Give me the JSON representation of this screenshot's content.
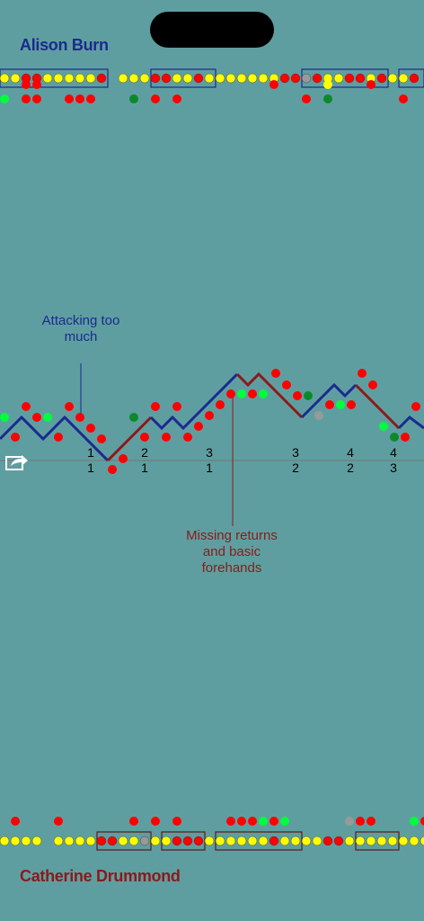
{
  "players": {
    "top": "Alison Burn",
    "bottom": "Catherine Drummond"
  },
  "annotations": {
    "top": "Attacking too much",
    "bottom": "Missing returns and basic forehands"
  },
  "score_markers": [
    {
      "top": "1",
      "bottom": "1"
    },
    {
      "top": "2",
      "bottom": "1"
    },
    {
      "top": "3",
      "bottom": "1"
    },
    {
      "top": "3",
      "bottom": "2"
    },
    {
      "top": "4",
      "bottom": "2"
    },
    {
      "top": "4",
      "bottom": "3"
    }
  ],
  "colors": {
    "background": "#5f9ea0",
    "top_player": "#1a2b8f",
    "bottom_player": "#8b1a1a",
    "winner": "#ff0000",
    "neutral": "#ffff00",
    "bright_green": "#00ff3c",
    "dark_green": "#0a8a2a",
    "grey": "#999999"
  },
  "icons": {
    "share": "share-icon"
  }
}
